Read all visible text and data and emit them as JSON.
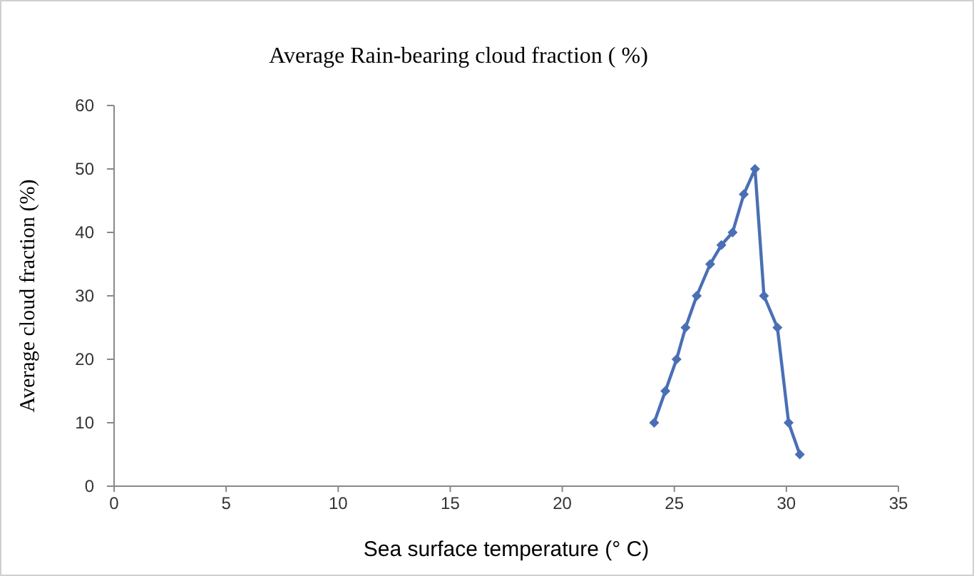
{
  "chart_data": {
    "type": "line",
    "title": "Average Rain-bearing cloud fraction ( %)",
    "xlabel": "Sea surface temperature (° C)",
    "ylabel": "Average cloud  fraction (%)",
    "x": [
      24.1,
      24.6,
      25.1,
      25.5,
      26.0,
      26.6,
      27.1,
      27.6,
      28.1,
      28.6,
      29.0,
      29.6,
      30.1,
      30.6
    ],
    "series": [
      {
        "color": "#4a6fb5",
        "values": [
          10,
          15,
          20,
          25,
          30,
          35,
          38,
          40,
          46,
          50,
          30,
          25,
          10,
          5
        ]
      }
    ],
    "xlim": [
      0,
      35
    ],
    "xticks": [
      0,
      5,
      10,
      15,
      20,
      25,
      30,
      35
    ],
    "ylim": [
      0,
      60
    ],
    "yticks": [
      0,
      10,
      20,
      30,
      40,
      50,
      60
    ],
    "grid": false,
    "marker": "diamond",
    "line_style": "solid"
  }
}
